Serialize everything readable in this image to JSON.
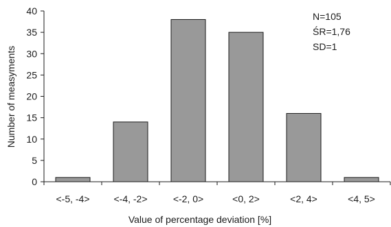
{
  "chart_data": {
    "type": "bar",
    "categories": [
      "<-5, -4>",
      "<-4, -2>",
      "<-2, 0>",
      "<0, 2>",
      "<2, 4>",
      "<4, 5>"
    ],
    "values": [
      1,
      14,
      38,
      35,
      16,
      1
    ],
    "title": "",
    "xlabel": "Value of percentage deviation [%]",
    "ylabel": "Number of measyments",
    "ylim": [
      0,
      40
    ],
    "yticks": [
      0,
      5,
      10,
      15,
      20,
      25,
      30,
      35,
      40
    ],
    "grid": false,
    "legend": null,
    "annotations": [
      "N=105",
      "ŚR=1,76",
      "SD=1"
    ],
    "bar_color": "#999999",
    "bar_edge_color": "#1a1a1a"
  }
}
